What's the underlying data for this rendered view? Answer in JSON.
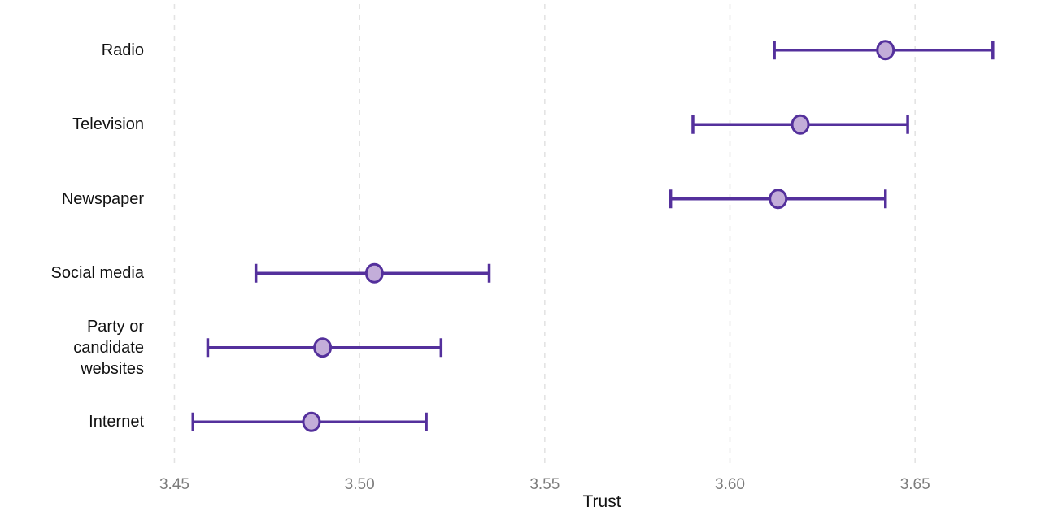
{
  "chart_data": {
    "type": "scatter",
    "variant": "dot-plot-with-error-bars",
    "title": "",
    "xlabel": "Trust",
    "ylabel": "",
    "xlim": [
      3.4029,
      3.684
    ],
    "x_ticks": [
      3.45,
      3.5,
      3.55,
      3.6,
      3.65
    ],
    "x_tick_labels": [
      "3.45",
      "3.50",
      "3.55",
      "3.60",
      "3.65"
    ],
    "grid": "vertical-dashed",
    "legend": "none",
    "categories": [
      {
        "name": "Radio",
        "label_lines": [
          "Radio"
        ],
        "value": 3.642,
        "ci_low": 3.612,
        "ci_high": 3.671
      },
      {
        "name": "Television",
        "label_lines": [
          "Television"
        ],
        "value": 3.619,
        "ci_low": 3.59,
        "ci_high": 3.648
      },
      {
        "name": "Newspaper",
        "label_lines": [
          "Newspaper"
        ],
        "value": 3.613,
        "ci_low": 3.584,
        "ci_high": 3.642
      },
      {
        "name": "Social media",
        "label_lines": [
          "Social media"
        ],
        "value": 3.504,
        "ci_low": 3.472,
        "ci_high": 3.535
      },
      {
        "name": "Party or candidate websites",
        "label_lines": [
          "Party or",
          "candidate",
          "websites"
        ],
        "value": 3.49,
        "ci_low": 3.459,
        "ci_high": 3.522
      },
      {
        "name": "Internet",
        "label_lines": [
          "Internet"
        ],
        "value": 3.487,
        "ci_low": 3.455,
        "ci_high": 3.518
      }
    ],
    "colors": {
      "errorbar_line": "#54309c",
      "marker_fill": "#c3add9",
      "marker_stroke": "#54309c",
      "gridline": "#e3e3e3",
      "tick_label": "#7b7b7b",
      "category_label": "#111111",
      "axis_label": "#111111",
      "background": "#ffffff"
    }
  }
}
